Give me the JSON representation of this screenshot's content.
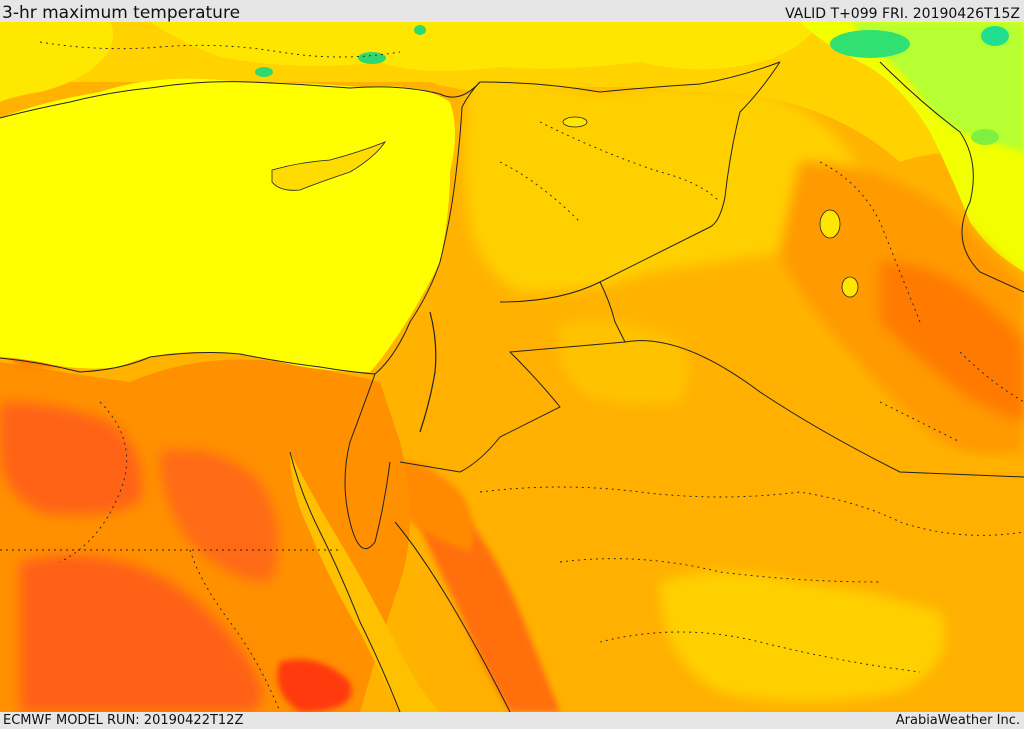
{
  "header": {
    "title": "3-hr maximum temperature",
    "valid": "VALID T+099 FRI. 20190426T15Z"
  },
  "footer": {
    "model_run": "ECMWF MODEL RUN: 20190422T12Z",
    "credit": "ArabiaWeather Inc."
  },
  "map": {
    "variable": "3-hr maximum temperature",
    "region": "Eastern Mediterranean / Levant / Arabia",
    "colors": {
      "sea": "#ffff00",
      "cool_green": "#22dd66",
      "light_green": "#aaff44",
      "yellow_orange": "#ffd400",
      "orange": "#ffb000",
      "dark_orange": "#ff8c00",
      "red_orange": "#ff5a14",
      "red": "#ff2a10"
    }
  }
}
